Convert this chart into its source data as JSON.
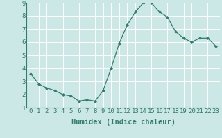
{
  "x": [
    0,
    1,
    2,
    3,
    4,
    5,
    6,
    7,
    8,
    9,
    10,
    11,
    12,
    13,
    14,
    15,
    16,
    17,
    18,
    19,
    20,
    21,
    22,
    23
  ],
  "y": [
    3.6,
    2.8,
    2.5,
    2.3,
    2.0,
    1.9,
    1.5,
    1.6,
    1.5,
    2.3,
    4.0,
    5.9,
    7.3,
    8.3,
    9.0,
    9.0,
    8.3,
    7.9,
    6.8,
    6.3,
    6.0,
    6.3,
    6.3,
    5.7
  ],
  "xlabel": "Humidex (Indice chaleur)",
  "xlim": [
    -0.5,
    23.5
  ],
  "ylim": [
    1,
    9
  ],
  "yticks": [
    1,
    2,
    3,
    4,
    5,
    6,
    7,
    8,
    9
  ],
  "xticks": [
    0,
    1,
    2,
    3,
    4,
    5,
    6,
    7,
    8,
    9,
    10,
    11,
    12,
    13,
    14,
    15,
    16,
    17,
    18,
    19,
    20,
    21,
    22,
    23
  ],
  "xtick_labels": [
    "0",
    "1",
    "2",
    "3",
    "4",
    "5",
    "6",
    "7",
    "8",
    "9",
    "10",
    "11",
    "12",
    "13",
    "14",
    "15",
    "16",
    "17",
    "18",
    "19",
    "20",
    "21",
    "22",
    "23"
  ],
  "line_color": "#2e7d6e",
  "marker_color": "#2e7d6e",
  "bg_color": "#cce8e6",
  "grid_color": "#ffffff",
  "label_color": "#2e7d6e",
  "xlabel_fontsize": 7.5,
  "tick_fontsize": 6.5
}
